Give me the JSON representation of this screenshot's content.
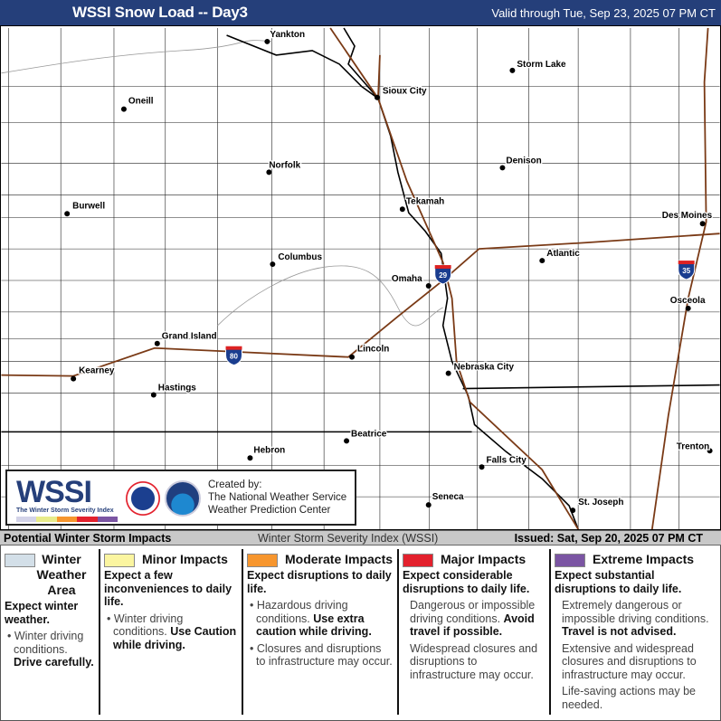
{
  "header": {
    "title": "WSSI Snow Load -- Day3",
    "valid": "Valid through Tue, Sep 23, 2025 07 PM CT",
    "bg_color": "#253f7a"
  },
  "map": {
    "cities": [
      {
        "name": "Yankton"
      },
      {
        "name": "Oneill"
      },
      {
        "name": "Sioux City"
      },
      {
        "name": "Storm Lake"
      },
      {
        "name": "Norfolk"
      },
      {
        "name": "Denison"
      },
      {
        "name": "Burwell"
      },
      {
        "name": "Tekamah"
      },
      {
        "name": "Des Moines"
      },
      {
        "name": "Columbus"
      },
      {
        "name": "Atlantic"
      },
      {
        "name": "Omaha"
      },
      {
        "name": "Osceola"
      },
      {
        "name": "Grand Island"
      },
      {
        "name": "Lincoln"
      },
      {
        "name": "Kearney"
      },
      {
        "name": "Nebraska City"
      },
      {
        "name": "Hastings"
      },
      {
        "name": "Beatrice"
      },
      {
        "name": "Hebron"
      },
      {
        "name": "Trenton"
      },
      {
        "name": "Falls City"
      },
      {
        "name": "Seneca"
      },
      {
        "name": "St. Joseph"
      }
    ],
    "interstates": [
      "29",
      "80",
      "35"
    ]
  },
  "logo": {
    "wssi": "WSSI",
    "tagline": "The Winter Storm Severity Index",
    "created_by": "Created by:",
    "org1": "The National Weather Service",
    "org2": "Weather Prediction Center"
  },
  "strip": {
    "left": "Potential Winter Storm Impacts",
    "center": "Winter Storm Severity Index (WSSI)",
    "issued": "Issued: Sat, Sep 20, 2025 07 PM CT"
  },
  "legend": [
    {
      "title": "Winter Weather Area",
      "color": "#d3dfe8",
      "head": "Expect winter weather.",
      "items": [
        {
          "text": "Winter driving conditions. ",
          "bold": "Drive carefully."
        }
      ]
    },
    {
      "title": "Minor Impacts",
      "color": "#fbf5a0",
      "head": "Expect a few inconveniences to daily life.",
      "items": [
        {
          "text": "Winter driving conditions. ",
          "bold": "Use Caution while driving."
        }
      ]
    },
    {
      "title": "Moderate Impacts",
      "color": "#f7962e",
      "head": "Expect disruptions to daily life.",
      "items": [
        {
          "text": "Hazardous driving conditions. ",
          "bold": "Use extra caution while driving."
        },
        {
          "text": "Closures and disruptions to infrastructure may occur.",
          "bold": ""
        }
      ]
    },
    {
      "title": "Major Impacts",
      "color": "#e3212d",
      "head": "Expect considerable disruptions to daily life.",
      "items": [
        {
          "text": "Dangerous or impossible driving conditions. ",
          "bold": "Avoid travel if possible."
        },
        {
          "text": "Widespread closures and disruptions to infrastructure may occur.",
          "bold": ""
        }
      ]
    },
    {
      "title": "Extreme Impacts",
      "color": "#7b55a3",
      "head": "Expect substantial disruptions to daily life.",
      "items": [
        {
          "text": "Extremely dangerous or impossible driving conditions. ",
          "bold": "Travel is not advised."
        },
        {
          "text": "Extensive and widespread closures and disruptions to infrastructure may occur.",
          "bold": ""
        },
        {
          "text": "Life-saving actions may be needed.",
          "bold": ""
        }
      ]
    }
  ]
}
